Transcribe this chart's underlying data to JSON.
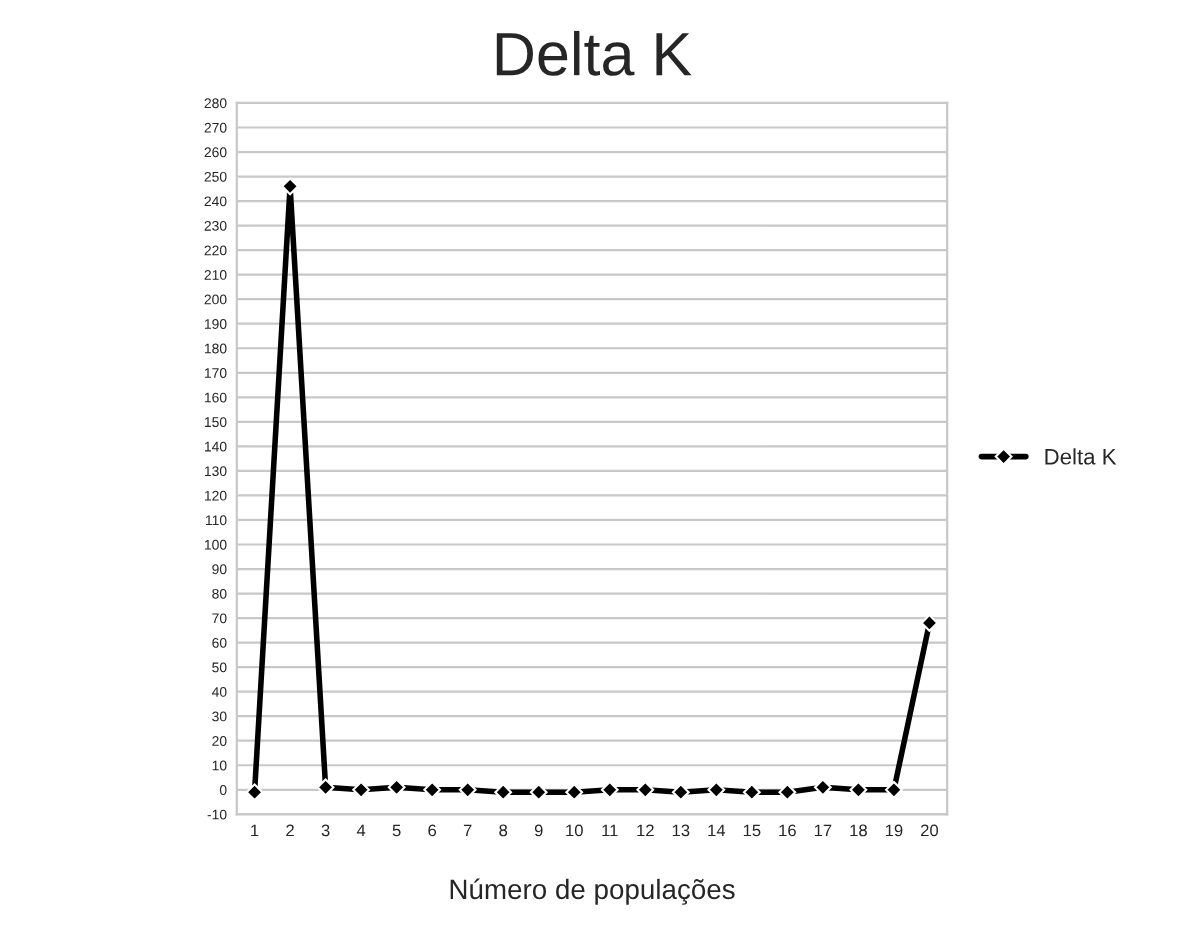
{
  "chart_data": {
    "type": "line",
    "title": "Delta K",
    "xlabel": "Número de populações",
    "categories": [
      "1",
      "2",
      "3",
      "4",
      "5",
      "6",
      "7",
      "8",
      "9",
      "10",
      "11",
      "12",
      "13",
      "14",
      "15",
      "16",
      "17",
      "18",
      "19",
      "20"
    ],
    "series": [
      {
        "name": "Delta K",
        "color": "#000000",
        "values": [
          -1,
          246,
          1,
          0,
          1,
          0,
          0,
          -1,
          -1,
          -1,
          0,
          0,
          -1,
          0,
          -1,
          -1,
          1,
          0,
          0,
          68
        ]
      }
    ],
    "ylim": [
      -10,
      280
    ],
    "yticks": [
      -10,
      0,
      10,
      20,
      30,
      40,
      50,
      60,
      70,
      80,
      90,
      100,
      110,
      120,
      130,
      140,
      150,
      160,
      170,
      180,
      190,
      200,
      210,
      220,
      230,
      240,
      250,
      260,
      270,
      280
    ],
    "grid": "y",
    "legend": "right",
    "marker": "diamond",
    "line_style": "solid"
  }
}
